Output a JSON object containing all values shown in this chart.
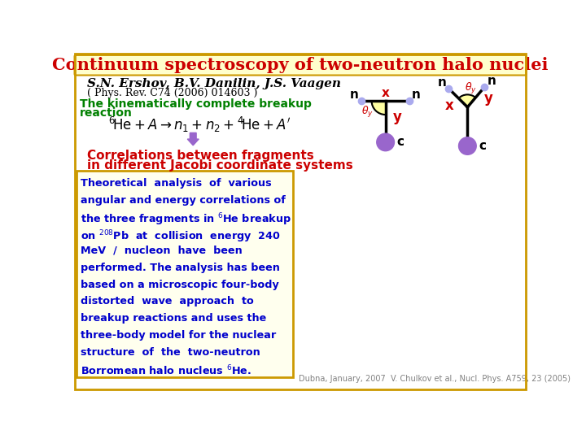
{
  "title": "Continuum spectroscopy of two-neutron halo nuclei",
  "title_color": "#cc0000",
  "title_bg": "#ffffcc",
  "title_border": "#cc9900",
  "bg_color": "#ffffff",
  "author_line": "S.N. Ershov, B.V. Danilin, J.S. Vaagen",
  "journal_line": "( Phys. Rev. C74 (2006) 014603 )",
  "green_text1": "The kinematically complete breakup",
  "green_text2": "reaction",
  "red_corr1": "Correlations between fragments",
  "red_corr2": "in different Jacobi coordinate systems",
  "footer_left": "Dubna, January, 2007",
  "footer_right": "V. Chulkov et al., Nucl. Phys. A759, 23 (2005)",
  "green_color": "#008000",
  "red_color": "#cc0000",
  "blue_color": "#0000cc",
  "purple_color": "#9966cc",
  "yellow_fill": "#ffff99",
  "box_border": "#cc9900",
  "box_bg": "#ffffee"
}
